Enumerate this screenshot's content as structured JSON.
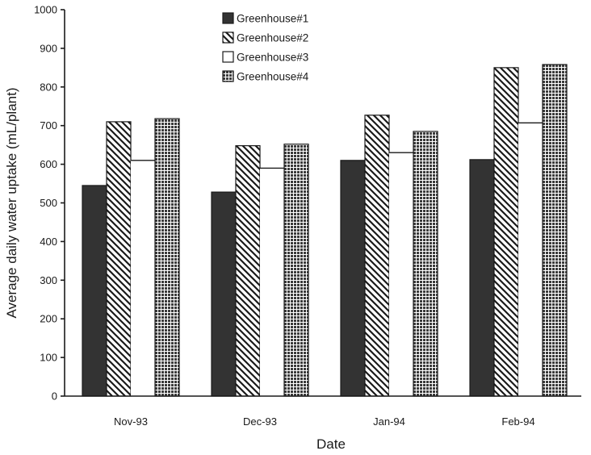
{
  "chart_data": {
    "type": "bar",
    "title": "",
    "xlabel": "Date",
    "ylabel": "Average daily water uptake (mL/plant)",
    "ylim": [
      0,
      1000
    ],
    "yticks": [
      0,
      100,
      200,
      300,
      400,
      500,
      600,
      700,
      800,
      900,
      1000
    ],
    "categories": [
      "Nov-93",
      "Dec-93",
      "Jan-94",
      "Feb-94"
    ],
    "series": [
      {
        "name": "Greenhouse#1",
        "values": [
          545,
          528,
          610,
          612
        ],
        "fill": "solid-dark"
      },
      {
        "name": "Greenhouse#2",
        "values": [
          710,
          648,
          727,
          850
        ],
        "fill": "diagonal-hatch"
      },
      {
        "name": "Greenhouse#3",
        "values": [
          610,
          590,
          630,
          707
        ],
        "fill": "white"
      },
      {
        "name": "Greenhouse#4",
        "values": [
          718,
          652,
          685,
          858
        ],
        "fill": "dotted-grid"
      }
    ],
    "grid": false,
    "legend_position": "top-center",
    "colors": {
      "bar_dark": "#333333",
      "ink": "#1a1a1a",
      "background": "#ffffff"
    }
  }
}
